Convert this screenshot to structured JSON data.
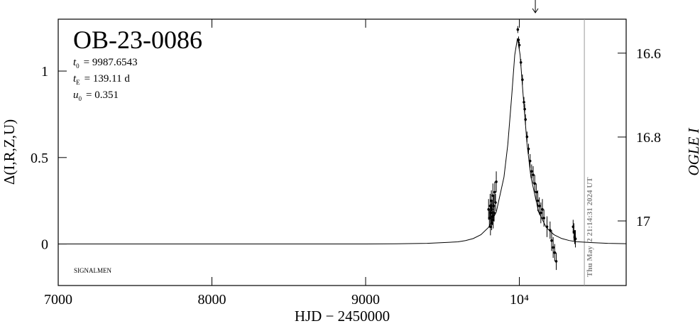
{
  "chart_data": {
    "type": "scatter",
    "title": "OB-23-0086",
    "params": [
      {
        "symbol": "t",
        "sub": "0",
        "text": "= 9987.6543"
      },
      {
        "symbol": "t",
        "sub": "E",
        "text": "= 139.11 d"
      },
      {
        "symbol": "u",
        "sub": "0",
        "text": "= 0.351"
      }
    ],
    "annotation": "SIGNALMEN",
    "timestamp": "Thu May  2 21:14:31 2024 UT",
    "timestamp_x": 10423,
    "arrow_x": 10104,
    "xlabel": "HJD − 2450000",
    "ylabel": "Δ(I,R,Z,U)",
    "y2label": "OGLE I",
    "xlim": [
      7000,
      10695
    ],
    "xticks": [
      7000,
      8000,
      9000,
      {
        "value": 10000,
        "label": "10⁴"
      }
    ],
    "ylim": [
      -0.24,
      1.3
    ],
    "yticks": [
      0,
      0.5,
      1
    ],
    "y2lim": [
      17.154,
      16.519
    ],
    "y2ticks": [
      16.6,
      16.8,
      17
    ],
    "color": "#000000",
    "model": {
      "x": [
        7000,
        8000,
        8500,
        9000,
        9200,
        9400,
        9500,
        9600,
        9650,
        9700,
        9750,
        9800,
        9850,
        9900,
        9925,
        9950,
        9970,
        9987.65,
        10005,
        10025,
        10050,
        10075,
        10125,
        10175,
        10225,
        10275,
        10325,
        10375,
        10475,
        10575,
        10695
      ],
      "values": [
        0,
        3e-05,
        0.0001,
        0.0005,
        0.0012,
        0.0037,
        0.0078,
        0.0127,
        0.0197,
        0.0316,
        0.0536,
        0.0962,
        0.185,
        0.387,
        0.576,
        0.852,
        1.092,
        1.19,
        1.094,
        0.857,
        0.579,
        0.389,
        0.186,
        0.096,
        0.054,
        0.032,
        0.02,
        0.013,
        0.0078,
        0.0037,
        0.0018
      ]
    },
    "series": [
      {
        "x": [
          9800,
          9805,
          9810,
          9812,
          9815,
          9818,
          9820,
          9822,
          9825,
          9828,
          9830,
          9833,
          9836,
          9840,
          9845,
          9850,
          9990,
          9995,
          10000,
          10010,
          10020,
          10030,
          10035,
          10040,
          10050,
          10060,
          10070,
          10080,
          10090,
          10100,
          10110,
          10120,
          10130,
          10140,
          10150,
          10160,
          10180,
          10200,
          10210,
          10220,
          10230,
          10240,
          10350,
          10355,
          10360,
          10365
        ],
        "values": [
          0.2,
          0.15,
          0.22,
          0.1,
          0.18,
          0.25,
          0.12,
          0.2,
          0.16,
          0.28,
          0.14,
          0.22,
          0.18,
          0.3,
          0.24,
          0.36,
          1.24,
          1.18,
          1.15,
          1.05,
          0.95,
          0.82,
          0.78,
          0.72,
          0.62,
          0.55,
          0.48,
          0.42,
          0.4,
          0.35,
          0.3,
          0.25,
          0.22,
          0.18,
          0.2,
          0.15,
          0.1,
          0.08,
          0.02,
          -0.02,
          -0.05,
          -0.1,
          0.1,
          0.07,
          0.04,
          0.03
        ],
        "errors": [
          0.06,
          0.05,
          0.07,
          0.05,
          0.05,
          0.06,
          0.04,
          0.05,
          0.05,
          0.07,
          0.05,
          0.06,
          0.05,
          0.06,
          0.05,
          0.06,
          0.02,
          0.02,
          0.02,
          0.02,
          0.03,
          0.03,
          0.03,
          0.03,
          0.03,
          0.03,
          0.04,
          0.04,
          0.05,
          0.05,
          0.05,
          0.06,
          0.05,
          0.06,
          0.06,
          0.05,
          0.06,
          0.05,
          0.06,
          0.06,
          0.05,
          0.05,
          0.04,
          0.05,
          0.04,
          0.05
        ]
      }
    ]
  }
}
